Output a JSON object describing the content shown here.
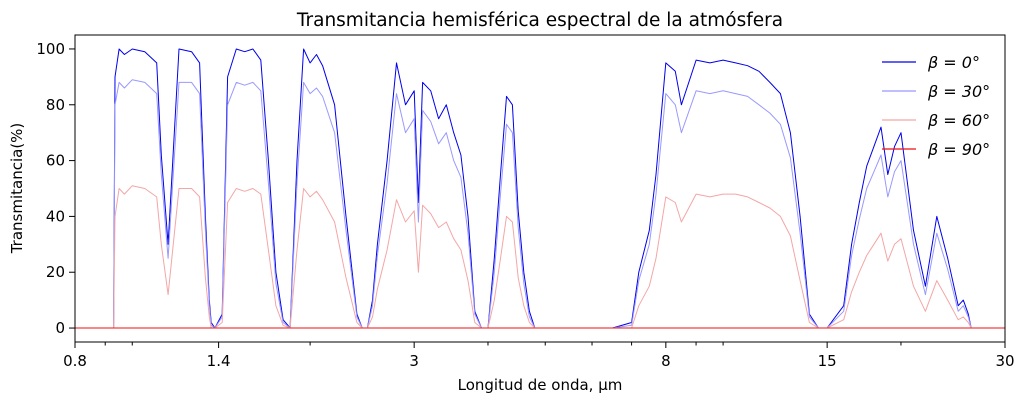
{
  "chart_data": {
    "type": "line",
    "title": "Transmitancia hemisférica espectral de la atmósfera",
    "xlabel": "Longitud de onda, μm",
    "ylabel": "Transmitancia(%)",
    "x_scale": "log",
    "xlim": [
      0.8,
      30
    ],
    "ylim": [
      -5,
      105
    ],
    "x_ticks": [
      0.8,
      1.4,
      3,
      8,
      15,
      30
    ],
    "x_tick_labels": [
      "0.8",
      "1.4",
      "3",
      "8",
      "15",
      "30"
    ],
    "y_ticks": [
      0,
      20,
      40,
      60,
      80,
      100
    ],
    "y_tick_labels": [
      "0",
      "20",
      "40",
      "60",
      "80",
      "100"
    ],
    "legend_position": "top-right",
    "series": [
      {
        "name": "β = 0°",
        "color": "#0000ee",
        "x": [
          0.8,
          0.93,
          0.935,
          0.95,
          0.97,
          1.0,
          1.05,
          1.1,
          1.12,
          1.15,
          1.2,
          1.26,
          1.3,
          1.33,
          1.35,
          1.36,
          1.38,
          1.42,
          1.45,
          1.5,
          1.55,
          1.6,
          1.65,
          1.7,
          1.75,
          1.8,
          1.85,
          1.9,
          1.95,
          2.0,
          2.05,
          2.1,
          2.2,
          2.3,
          2.4,
          2.45,
          2.5,
          2.55,
          2.6,
          2.7,
          2.8,
          2.9,
          3.0,
          3.05,
          3.1,
          3.2,
          3.3,
          3.4,
          3.5,
          3.6,
          3.7,
          3.8,
          3.9,
          4.0,
          4.1,
          4.2,
          4.3,
          4.4,
          4.5,
          4.6,
          4.7,
          4.8,
          4.9,
          5.0,
          5.1,
          5.2,
          5.3,
          5.4,
          5.5,
          5.6,
          5.8,
          6.0,
          6.5,
          7.0,
          7.2,
          7.5,
          7.7,
          8.0,
          8.3,
          8.5,
          9.0,
          9.5,
          10.0,
          10.5,
          11.0,
          11.5,
          12.0,
          12.5,
          13.0,
          13.5,
          14.0,
          14.5,
          15.0,
          16.0,
          16.5,
          17.0,
          17.5,
          18.0,
          18.5,
          19.0,
          19.5,
          20.0,
          21.0,
          22.0,
          23.0,
          24.0,
          25.0,
          25.5,
          26.0,
          26.3,
          27.0,
          30.0
        ],
        "y": [
          0,
          0,
          90,
          100,
          98,
          100,
          99,
          95,
          62,
          30,
          100,
          99,
          95,
          40,
          10,
          2,
          0,
          5,
          90,
          100,
          99,
          100,
          96,
          60,
          20,
          3,
          0,
          60,
          100,
          95,
          98,
          94,
          80,
          40,
          5,
          0,
          0,
          10,
          30,
          60,
          95,
          80,
          85,
          45,
          88,
          85,
          75,
          80,
          70,
          62,
          40,
          6,
          0,
          0,
          25,
          55,
          83,
          80,
          42,
          20,
          6,
          0,
          0,
          0,
          0,
          0,
          0,
          0,
          0,
          0,
          0,
          0,
          0,
          2,
          20,
          35,
          55,
          95,
          92,
          80,
          96,
          95,
          96,
          95,
          94,
          92,
          88,
          84,
          70,
          40,
          5,
          0,
          0,
          8,
          30,
          45,
          58,
          65,
          72,
          55,
          65,
          70,
          35,
          15,
          40,
          25,
          8,
          10,
          5,
          0,
          0,
          0
        ]
      },
      {
        "name": "β = 30°",
        "color": "#9999ff",
        "x": [
          0.8,
          0.93,
          0.935,
          0.95,
          0.97,
          1.0,
          1.05,
          1.1,
          1.12,
          1.15,
          1.2,
          1.26,
          1.3,
          1.33,
          1.35,
          1.36,
          1.38,
          1.42,
          1.45,
          1.5,
          1.55,
          1.6,
          1.65,
          1.7,
          1.75,
          1.8,
          1.85,
          1.9,
          1.95,
          2.0,
          2.05,
          2.1,
          2.2,
          2.3,
          2.4,
          2.45,
          2.5,
          2.55,
          2.6,
          2.7,
          2.8,
          2.9,
          3.0,
          3.05,
          3.1,
          3.2,
          3.3,
          3.4,
          3.5,
          3.6,
          3.7,
          3.8,
          3.9,
          4.0,
          4.1,
          4.2,
          4.3,
          4.4,
          4.5,
          4.6,
          4.7,
          4.8,
          4.9,
          5.0,
          5.1,
          5.2,
          5.3,
          5.4,
          5.5,
          5.6,
          5.8,
          6.0,
          6.5,
          7.0,
          7.2,
          7.5,
          7.7,
          8.0,
          8.3,
          8.5,
          9.0,
          9.5,
          10.0,
          10.5,
          11.0,
          11.5,
          12.0,
          12.5,
          13.0,
          13.5,
          14.0,
          14.5,
          15.0,
          16.0,
          16.5,
          17.0,
          17.5,
          18.0,
          18.5,
          19.0,
          19.5,
          20.0,
          21.0,
          22.0,
          23.0,
          24.0,
          25.0,
          25.5,
          26.0,
          26.3,
          27.0,
          30.0
        ],
        "y": [
          0,
          0,
          80,
          88,
          86,
          89,
          88,
          84,
          55,
          25,
          88,
          88,
          84,
          35,
          8,
          1,
          0,
          4,
          80,
          88,
          87,
          88,
          85,
          52,
          16,
          2,
          0,
          52,
          88,
          84,
          86,
          83,
          70,
          35,
          4,
          0,
          0,
          8,
          26,
          52,
          84,
          70,
          75,
          38,
          78,
          74,
          66,
          70,
          60,
          54,
          34,
          5,
          0,
          0,
          20,
          48,
          73,
          70,
          36,
          16,
          4,
          0,
          0,
          0,
          0,
          0,
          0,
          0,
          0,
          0,
          0,
          0,
          0,
          1,
          17,
          30,
          48,
          84,
          80,
          70,
          85,
          84,
          85,
          84,
          83,
          80,
          77,
          73,
          61,
          34,
          4,
          0,
          0,
          6,
          26,
          39,
          50,
          56,
          62,
          47,
          56,
          60,
          30,
          12,
          34,
          21,
          6,
          8,
          4,
          0,
          0,
          0
        ]
      },
      {
        "name": "β = 60°",
        "color": "#f4a6a6",
        "x": [
          0.8,
          0.93,
          0.935,
          0.95,
          0.97,
          1.0,
          1.05,
          1.1,
          1.12,
          1.15,
          1.2,
          1.26,
          1.3,
          1.33,
          1.35,
          1.36,
          1.38,
          1.42,
          1.45,
          1.5,
          1.55,
          1.6,
          1.65,
          1.7,
          1.75,
          1.8,
          1.85,
          1.9,
          1.95,
          2.0,
          2.05,
          2.1,
          2.2,
          2.3,
          2.4,
          2.45,
          2.5,
          2.55,
          2.6,
          2.7,
          2.8,
          2.9,
          3.0,
          3.05,
          3.1,
          3.2,
          3.3,
          3.4,
          3.5,
          3.6,
          3.7,
          3.8,
          3.9,
          4.0,
          4.1,
          4.2,
          4.3,
          4.4,
          4.5,
          4.6,
          4.7,
          4.8,
          4.9,
          5.0,
          5.1,
          5.2,
          5.3,
          5.4,
          5.5,
          5.6,
          5.8,
          6.0,
          6.5,
          7.0,
          7.2,
          7.5,
          7.7,
          8.0,
          8.3,
          8.5,
          9.0,
          9.5,
          10.0,
          10.5,
          11.0,
          11.5,
          12.0,
          12.5,
          13.0,
          13.5,
          14.0,
          14.5,
          15.0,
          16.0,
          16.5,
          17.0,
          17.5,
          18.0,
          18.5,
          19.0,
          19.5,
          20.0,
          21.0,
          22.0,
          23.0,
          24.0,
          25.0,
          25.5,
          26.0,
          26.3,
          27.0,
          30.0
        ],
        "y": [
          0,
          0,
          40,
          50,
          48,
          51,
          50,
          47,
          30,
          12,
          50,
          50,
          47,
          18,
          4,
          0,
          0,
          2,
          45,
          50,
          49,
          50,
          48,
          28,
          8,
          1,
          0,
          28,
          50,
          47,
          49,
          46,
          38,
          18,
          2,
          0,
          0,
          4,
          14,
          28,
          46,
          38,
          42,
          20,
          44,
          41,
          36,
          38,
          32,
          28,
          17,
          2,
          0,
          0,
          10,
          25,
          40,
          38,
          18,
          8,
          2,
          0,
          0,
          0,
          0,
          0,
          0,
          0,
          0,
          0,
          0,
          0,
          0,
          0,
          8,
          15,
          25,
          47,
          45,
          38,
          48,
          47,
          48,
          48,
          47,
          45,
          43,
          40,
          33,
          17,
          2,
          0,
          0,
          3,
          13,
          20,
          26,
          30,
          34,
          24,
          30,
          32,
          15,
          6,
          17,
          10,
          3,
          4,
          2,
          0,
          0,
          0
        ]
      },
      {
        "name": "β = 90°",
        "color": "#ee1111",
        "x": [
          0.8,
          30.0
        ],
        "y": [
          0,
          0
        ]
      }
    ]
  }
}
